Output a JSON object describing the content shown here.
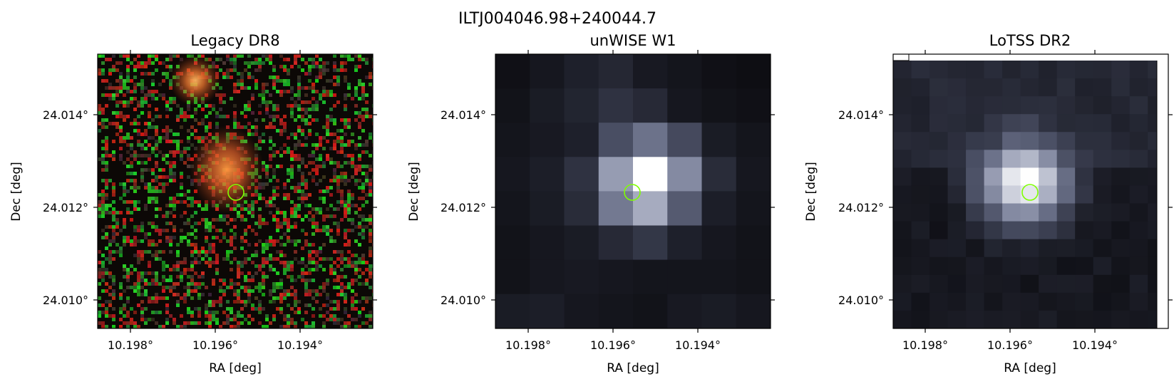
{
  "figure": {
    "title": "ILTJ004046.98+240044.7"
  },
  "panels": [
    {
      "title": "Legacy DR8",
      "image_kind": "optical-rgb",
      "xlabel": "RA [deg]",
      "ylabel": "Dec [deg]",
      "xticks": [
        "10.198°",
        "10.196°",
        "10.194°"
      ],
      "yticks": [
        "24.014°",
        "24.012°",
        "24.010°"
      ]
    },
    {
      "title": "unWISE W1",
      "image_kind": "infrared-grayscale",
      "xlabel": "RA [deg]",
      "ylabel": "Dec [deg]",
      "xticks": [
        "10.198°",
        "10.196°",
        "10.194°"
      ],
      "yticks": [
        "24.014°",
        "24.012°",
        "24.010°"
      ]
    },
    {
      "title": "LoTSS DR2",
      "image_kind": "radio-grayscale",
      "xlabel": "RA [deg]",
      "ylabel": "Dec [deg]",
      "xticks": [
        "10.198°",
        "10.196°",
        "10.194°"
      ],
      "yticks": [
        "24.014°",
        "24.012°",
        "24.010°"
      ]
    }
  ],
  "colors": {
    "marker": "#7fff00"
  }
}
